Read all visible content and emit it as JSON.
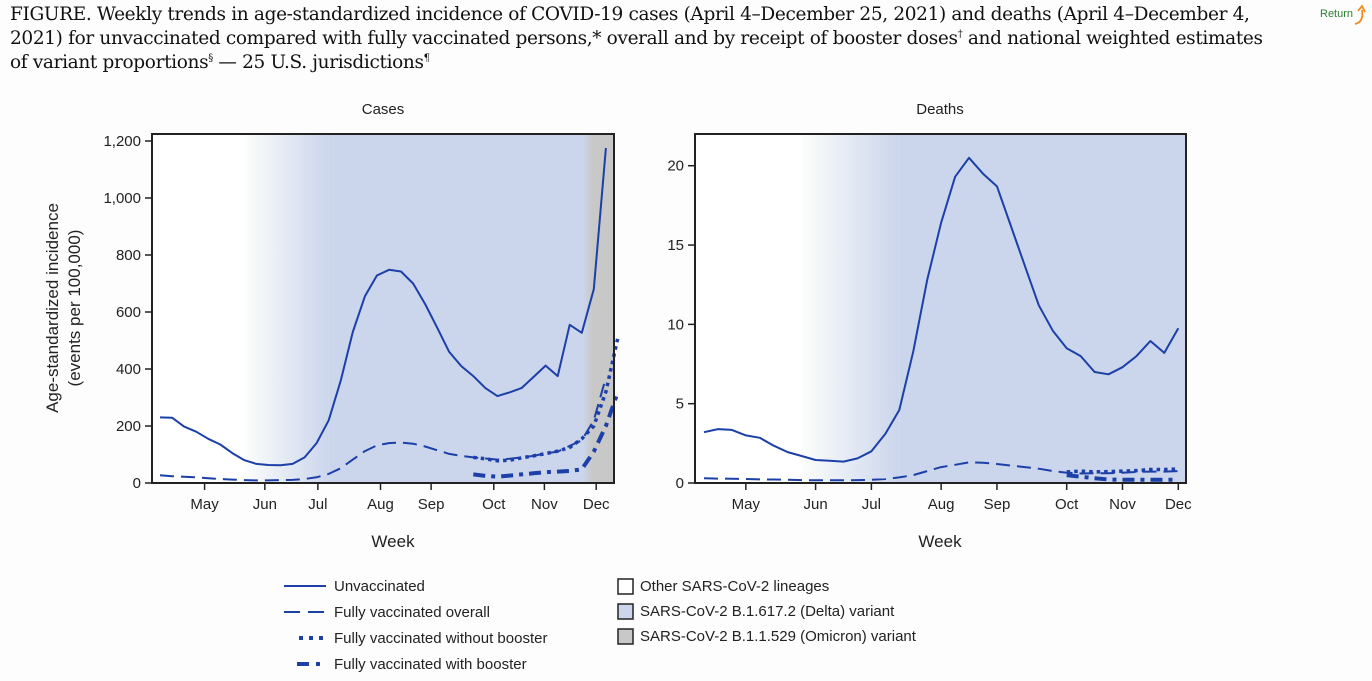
{
  "title_parts": {
    "main": "FIGURE. Weekly trends in age-standardized incidence of COVID-19 cases (April 4–December 25, 2021) and deaths (April 4–December 4, 2021) for unvaccinated compared with fully vaccinated persons,* overall and by receipt of booster doses",
    "sup1": "†",
    "mid": " and national weighted estimates of variant proportions",
    "sup2": "§",
    "end": " — 25 U.S. jurisdictions",
    "sup3": "¶"
  },
  "return_link": {
    "label": "Return",
    "icon": "return-arrow-icon"
  },
  "colors": {
    "line": "#1c3fa8",
    "delta_bg": "#cbd6ec",
    "omicron_bg": "#c8c8c8",
    "other_bg": "#ffffff",
    "return_text": "#2e7d32",
    "return_arrow": "#f08a1c"
  },
  "chart_data": [
    {
      "type": "line",
      "title": "Cases",
      "xlabel": "Week",
      "ylabel": "Age-standardized incidence\n(events per 100,000)",
      "ylabel_line1": "Age-standardized incidence",
      "ylabel_line2": "(events per 100,000)",
      "ylim": [
        0,
        1200
      ],
      "yticks": [
        0,
        200,
        400,
        600,
        800,
        1000,
        1200
      ],
      "ytick_labels": [
        "0",
        "200",
        "400",
        "600",
        "800",
        "1,000",
        "1,200"
      ],
      "x_start": "2021-04-04",
      "x_weeks": 39,
      "xtick_labels": [
        "May",
        "Jun",
        "Jul",
        "Aug",
        "Sep",
        "Oct",
        "Nov",
        "Dec"
      ],
      "xtick_week_index": [
        3.7,
        8.7,
        13.1,
        18.3,
        22.5,
        27.7,
        31.9,
        36.2
      ],
      "background_regions": [
        {
          "variant": "Other SARS-CoV-2 lineages",
          "from_week": 0,
          "to_week": 7
        },
        {
          "variant": "SARS-CoV-2 B.1.617.2 (Delta) variant",
          "from_week": 7,
          "to_week": 35.8,
          "fade_in_weeks": [
            7,
            14
          ]
        },
        {
          "variant": "SARS-CoV-2 B.1.1.529 (Omicron) variant",
          "from_week": 35.8,
          "to_week": 38.5
        }
      ],
      "series": [
        {
          "name": "Unvaccinated",
          "style": "solid",
          "start_week": 0,
          "values": [
            230,
            229,
            198,
            180,
            155,
            135,
            105,
            80,
            67,
            63,
            62,
            67,
            90,
            140,
            220,
            360,
            530,
            655,
            728,
            748,
            742,
            700,
            628,
            545,
            460,
            410,
            375,
            333,
            305,
            318,
            333,
            372,
            412,
            375,
            555,
            527,
            680,
            1175
          ]
        },
        {
          "name": "Fully vaccinated overall",
          "style": "dashed",
          "start_week": 0,
          "values": [
            27,
            24,
            22,
            20,
            17,
            14,
            12,
            10,
            9,
            9,
            10,
            11,
            14,
            20,
            32,
            52,
            82,
            112,
            132,
            140,
            142,
            138,
            128,
            115,
            102,
            95,
            90,
            86,
            82,
            85,
            90,
            95,
            104,
            110,
            130,
            150,
            220,
            370
          ]
        },
        {
          "name": "Fully vaccinated without booster",
          "style": "dotted",
          "start_week": 26,
          "values": [
            90,
            85,
            78,
            80,
            88,
            95,
            103,
            112,
            125,
            155,
            200,
            320,
            510
          ]
        },
        {
          "name": "Fully vaccinated with booster",
          "style": "dashdot",
          "start_week": 26,
          "values": [
            30,
            25,
            22,
            26,
            30,
            34,
            38,
            40,
            42,
            48,
            110,
            200,
            320
          ]
        }
      ]
    },
    {
      "type": "line",
      "title": "Deaths",
      "xlabel": "Week",
      "ylim": [
        0,
        22
      ],
      "yticks": [
        0,
        5,
        10,
        15,
        20
      ],
      "ytick_labels": [
        "0",
        "5",
        "10",
        "15",
        "20"
      ],
      "x_start": "2021-04-04",
      "x_weeks": 36,
      "xtick_labels": [
        "May",
        "Jun",
        "Jul",
        "Aug",
        "Sep",
        "Oct",
        "Nov",
        "Dec"
      ],
      "xtick_week_index": [
        3.0,
        8.0,
        12.0,
        17.0,
        21.0,
        26.0,
        30.0,
        34.0
      ],
      "background_regions": [
        {
          "variant": "Other SARS-CoV-2 lineages",
          "from_week": 0,
          "to_week": 7
        },
        {
          "variant": "SARS-CoV-2 B.1.617.2 (Delta) variant",
          "from_week": 7,
          "to_week": 34.7,
          "fade_in_weeks": [
            7,
            14
          ]
        }
      ],
      "series": [
        {
          "name": "Unvaccinated",
          "style": "solid",
          "start_week": 0,
          "values": [
            3.2,
            3.4,
            3.35,
            3.0,
            2.85,
            2.35,
            1.95,
            1.7,
            1.45,
            1.4,
            1.35,
            1.55,
            2.0,
            3.1,
            4.6,
            8.3,
            12.8,
            16.4,
            19.3,
            20.5,
            19.5,
            18.7,
            16.2,
            13.7,
            11.2,
            9.6,
            8.5,
            8.0,
            7.0,
            6.85,
            7.3,
            8.0,
            8.95,
            8.2,
            9.75
          ]
        },
        {
          "name": "Fully vaccinated overall",
          "style": "dashed",
          "start_week": 0,
          "values": [
            0.3,
            0.28,
            0.27,
            0.25,
            0.23,
            0.22,
            0.2,
            0.18,
            0.17,
            0.17,
            0.17,
            0.18,
            0.2,
            0.25,
            0.35,
            0.5,
            0.75,
            1.0,
            1.15,
            1.3,
            1.28,
            1.2,
            1.1,
            1.0,
            0.9,
            0.75,
            0.65,
            0.6,
            0.62,
            0.62,
            0.65,
            0.7,
            0.72,
            0.72,
            0.75
          ]
        },
        {
          "name": "Fully vaccinated without booster",
          "style": "dotted",
          "start_week": 26,
          "values": [
            0.7,
            0.75,
            0.7,
            0.72,
            0.75,
            0.78,
            0.85,
            0.85,
            0.88
          ]
        },
        {
          "name": "Fully vaccinated with booster",
          "style": "dashdot",
          "start_week": 26,
          "values": [
            0.5,
            0.4,
            0.3,
            0.22,
            0.2,
            0.2,
            0.2,
            0.2,
            0.2
          ]
        }
      ]
    }
  ],
  "legend": {
    "lines": [
      {
        "label": "Unvaccinated",
        "style": "solid"
      },
      {
        "label": "Fully vaccinated overall",
        "style": "dashed"
      },
      {
        "label": "Fully vaccinated without booster",
        "style": "dotted"
      },
      {
        "label": "Fully vaccinated with booster",
        "style": "dashdot"
      }
    ],
    "variants": [
      {
        "label": "Other SARS-CoV-2 lineages",
        "color": "#ffffff"
      },
      {
        "label": "SARS-CoV-2 B.1.617.2 (Delta) variant",
        "color": "#cbd6ec"
      },
      {
        "label": "SARS-CoV-2 B.1.1.529 (Omicron) variant",
        "color": "#c8c8c8"
      }
    ]
  }
}
